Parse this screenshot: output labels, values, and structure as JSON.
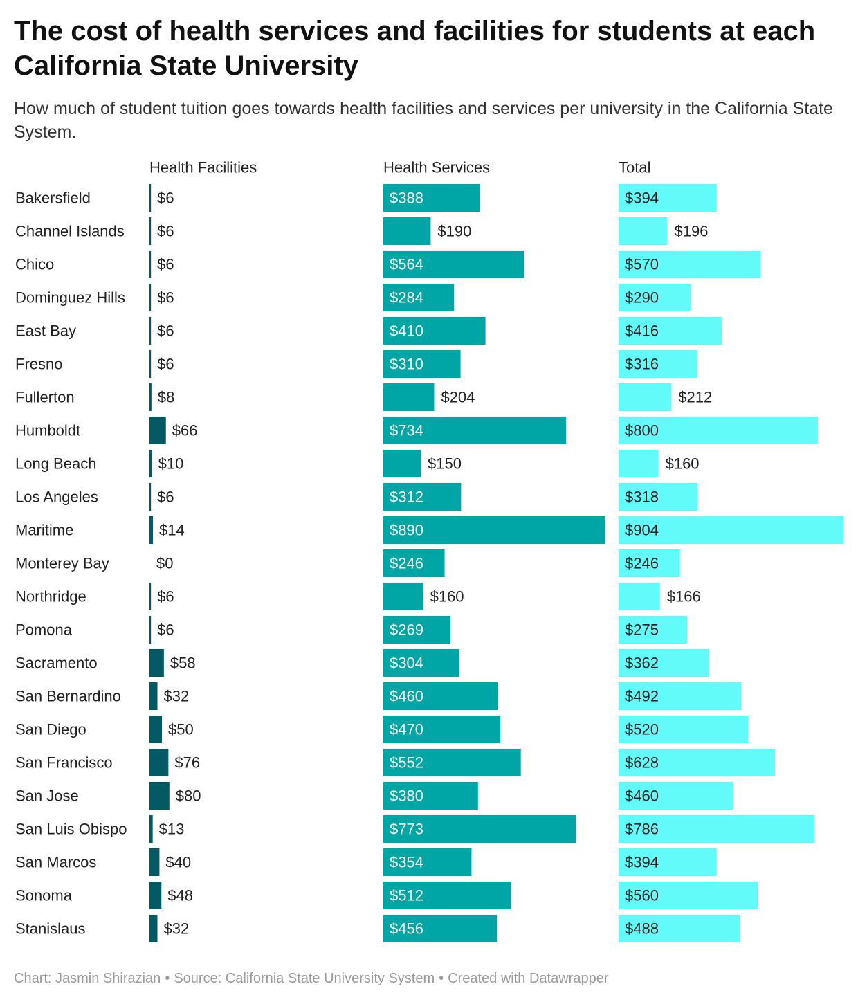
{
  "header": {
    "title": "The cost of health services and facilities for students at each California State University",
    "subtitle": "How much of student tuition goes towards health facilities and services per university in the California State System."
  },
  "chart_data": {
    "type": "bar",
    "orientation": "horizontal",
    "currency_prefix": "$",
    "categories": [
      "Bakersfield",
      "Channel Islands",
      "Chico",
      "Dominguez Hills",
      "East Bay",
      "Fresno",
      "Fullerton",
      "Humboldt",
      "Long Beach",
      "Los Angeles",
      "Maritime",
      "Monterey Bay",
      "Northridge",
      "Pomona",
      "Sacramento",
      "San Bernardino",
      "San Diego",
      "San Francisco",
      "San Jose",
      "San Luis Obispo",
      "San Marcos",
      "Sonoma",
      "Stanislaus"
    ],
    "series": [
      {
        "name": "Health Facilities",
        "color": "#045962",
        "values": [
          6,
          6,
          6,
          6,
          6,
          6,
          8,
          66,
          10,
          6,
          14,
          0,
          6,
          6,
          58,
          32,
          50,
          76,
          80,
          13,
          40,
          48,
          32
        ]
      },
      {
        "name": "Health Services",
        "color": "#00a5a6",
        "values": [
          388,
          190,
          564,
          284,
          410,
          310,
          204,
          734,
          150,
          312,
          890,
          246,
          160,
          269,
          304,
          460,
          470,
          552,
          380,
          773,
          354,
          512,
          456
        ]
      },
      {
        "name": "Total",
        "color": "#62fbf9",
        "values": [
          394,
          196,
          570,
          290,
          416,
          316,
          212,
          800,
          160,
          318,
          904,
          246,
          166,
          275,
          362,
          492,
          520,
          628,
          460,
          786,
          394,
          560,
          488
        ]
      }
    ]
  },
  "footer": {
    "credit": "Chart: Jasmin Shirazian",
    "source": "Source: California State University System",
    "tool": "Created with Datawrapper",
    "separator": "•"
  }
}
